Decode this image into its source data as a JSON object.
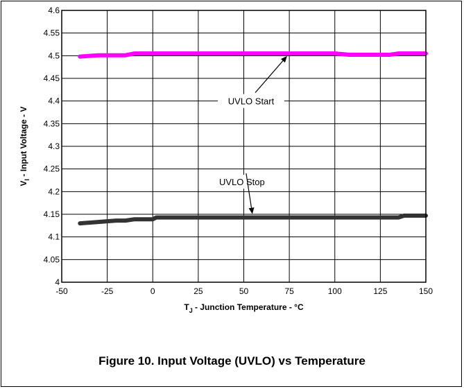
{
  "caption": "Figure 10. Input Voltage (UVLO) vs Temperature",
  "chart_data": {
    "type": "line",
    "xlabel": "T_J - Junction Temperature - °C",
    "ylabel": "V_I - Input Voltage - V",
    "xlim": [
      -50,
      150
    ],
    "ylim": [
      4.0,
      4.6
    ],
    "xticks": [
      -50,
      -25,
      0,
      25,
      50,
      75,
      100,
      125,
      150
    ],
    "yticks": [
      4,
      4.05,
      4.1,
      4.15,
      4.2,
      4.25,
      4.3,
      4.35,
      4.4,
      4.45,
      4.5,
      4.55,
      4.6
    ],
    "grid": true,
    "series": [
      {
        "name": "UVLO Start",
        "color": "#ff00ff",
        "x": [
          -40,
          -30,
          -15,
          -10,
          0,
          25,
          50,
          75,
          100,
          108,
          130,
          135,
          150
        ],
        "values": [
          4.498,
          4.501,
          4.501,
          4.505,
          4.505,
          4.505,
          4.505,
          4.505,
          4.505,
          4.502,
          4.502,
          4.505,
          4.505
        ]
      },
      {
        "name": "UVLO Stop",
        "color": "#333333",
        "x": [
          -40,
          -30,
          -20,
          -15,
          -10,
          0,
          2,
          25,
          50,
          75,
          100,
          125,
          135,
          138,
          150
        ],
        "values": [
          4.13,
          4.133,
          4.136,
          4.136,
          4.139,
          4.139,
          4.143,
          4.143,
          4.143,
          4.143,
          4.143,
          4.143,
          4.143,
          4.147,
          4.147
        ]
      }
    ],
    "annotations": [
      {
        "text": "UVLO Start",
        "label_at": [
          54,
          4.4
        ],
        "arrow_to": [
          75,
          4.505
        ]
      },
      {
        "text": "UVLO Stop",
        "label_at": [
          49,
          4.222
        ],
        "arrow_to": [
          55,
          4.143
        ]
      }
    ]
  }
}
